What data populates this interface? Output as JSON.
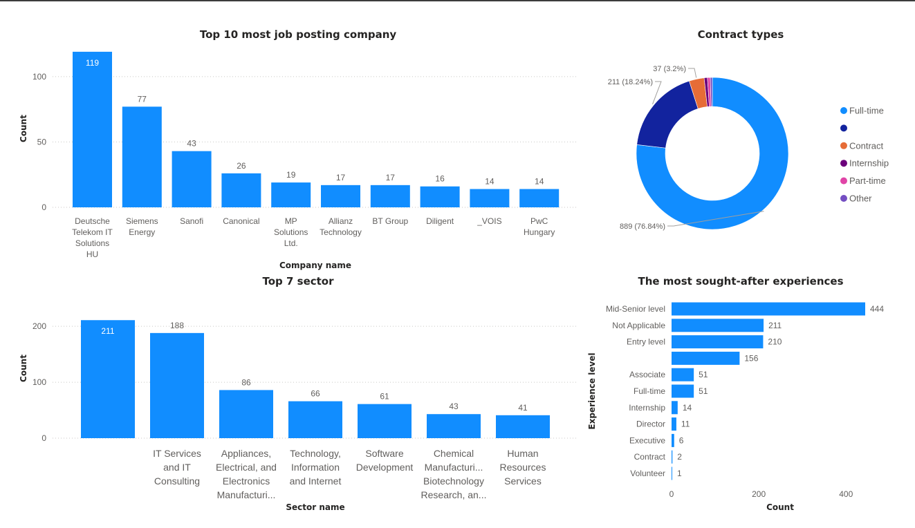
{
  "chart_data": [
    {
      "id": "companies",
      "type": "bar",
      "title": "Top 10 most job posting company",
      "xlabel": "Company name",
      "ylabel": "Count",
      "ylim": [
        0,
        120
      ],
      "yticks": [
        0,
        50,
        100
      ],
      "grid": true,
      "color": "#118DFF",
      "categories": [
        [
          "Deutsche",
          "Telekom IT",
          "Solutions",
          "HU"
        ],
        [
          "Siemens",
          "Energy"
        ],
        [
          "Sanofi"
        ],
        [
          "Canonical"
        ],
        [
          "MP",
          "Solutions",
          "Ltd."
        ],
        [
          "Allianz",
          "Technology"
        ],
        [
          "BT Group"
        ],
        [
          "Diligent"
        ],
        [
          "_VOIS"
        ],
        [
          "PwC",
          "Hungary"
        ]
      ],
      "values": [
        119,
        77,
        43,
        26,
        19,
        17,
        17,
        16,
        14,
        14
      ]
    },
    {
      "id": "contracts",
      "type": "pie",
      "title": "Contract types",
      "legend_position": "right",
      "slices": [
        {
          "name": "Full-time",
          "value": 889,
          "label": "889 (76.84%)",
          "color": "#118DFF"
        },
        {
          "name": "",
          "value": 211,
          "label": "211 (18.24%)",
          "color": "#12239E"
        },
        {
          "name": "Contract",
          "value": 37,
          "label": "37 (3.2%)",
          "color": "#E66C37"
        },
        {
          "name": "Internship",
          "value": 8,
          "label": "",
          "color": "#6B007B"
        },
        {
          "name": "Part-time",
          "value": 7,
          "label": "",
          "color": "#E044A7"
        },
        {
          "name": "Other",
          "value": 5,
          "label": "",
          "color": "#744EC2"
        }
      ]
    },
    {
      "id": "sectors",
      "type": "bar",
      "title": "Top 7 sector",
      "xlabel": "Sector name",
      "ylabel": "Count",
      "ylim": [
        0,
        215
      ],
      "yticks": [
        0,
        100,
        200
      ],
      "grid": true,
      "color": "#118DFF",
      "categories": [
        [],
        [
          "IT Services",
          "and IT",
          "Consulting"
        ],
        [
          "Appliances,",
          "Electrical, and",
          "Electronics",
          "Manufacturi..."
        ],
        [
          "Technology,",
          "Information",
          "and Internet"
        ],
        [
          "Software",
          "Development"
        ],
        [
          "Chemical",
          "Manufacturi...",
          "Biotechnology",
          "Research, an..."
        ],
        [
          "Human",
          "Resources",
          "Services"
        ]
      ],
      "values": [
        211,
        188,
        86,
        66,
        61,
        43,
        41
      ]
    },
    {
      "id": "experiences",
      "type": "bar",
      "orientation": "horizontal",
      "title": "The most sought-after experiences",
      "xlabel": "Count",
      "ylabel": "Experience level",
      "xlim": [
        0,
        450
      ],
      "xticks": [
        0,
        200,
        400
      ],
      "grid": false,
      "color": "#118DFF",
      "categories": [
        "Mid-Senior level",
        "Not Applicable",
        "Entry level",
        "",
        "Associate",
        "Full-time",
        "Internship",
        "Director",
        "Executive",
        "Contract",
        "Volunteer"
      ],
      "values": [
        444,
        211,
        210,
        156,
        51,
        51,
        14,
        11,
        6,
        2,
        1
      ]
    }
  ]
}
